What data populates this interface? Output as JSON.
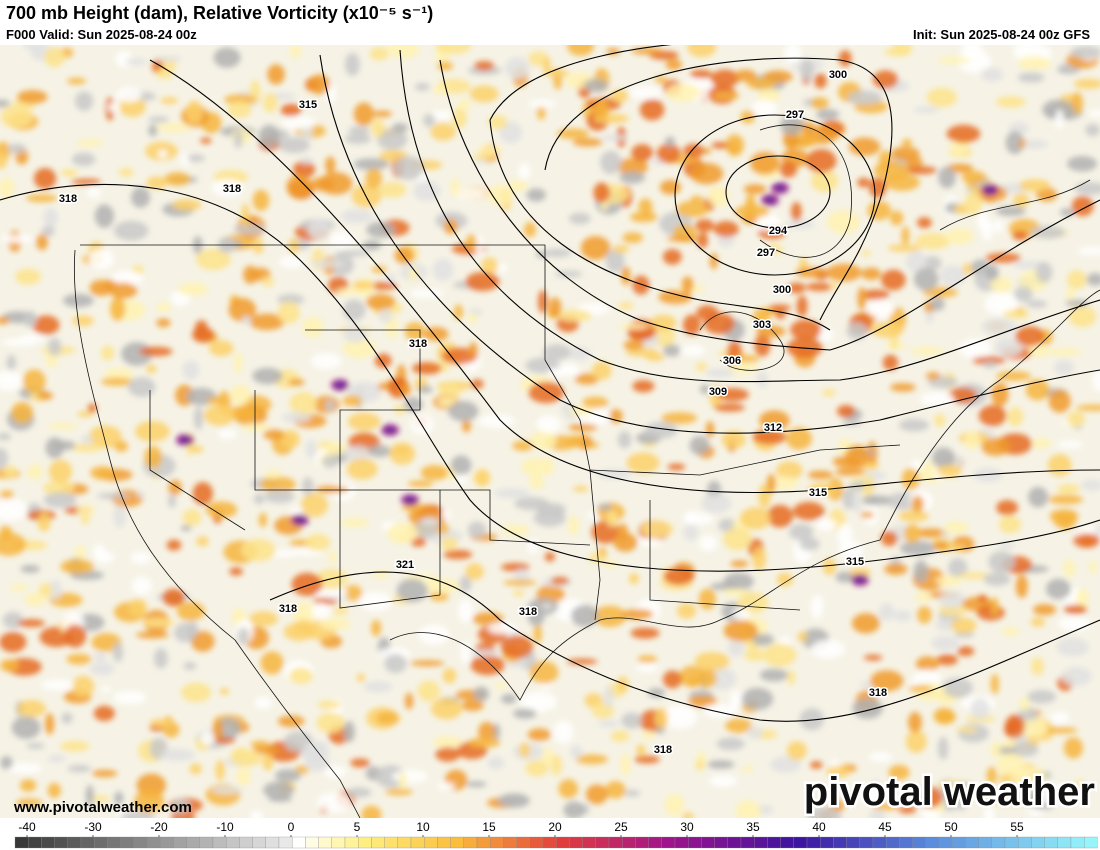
{
  "header": {
    "title": "700 mb Height (dam), Relative Vorticity (x10⁻⁵ s⁻¹)",
    "valid": "F000 Valid: Sun 2025-08-24 00z",
    "init": "Init: Sun 2025-08-24 00z GFS"
  },
  "map": {
    "contour_labels": [
      315,
      318,
      318,
      318,
      300,
      297,
      294,
      297,
      300,
      303,
      306,
      309,
      312,
      315,
      315,
      321,
      318,
      318,
      318,
      318
    ],
    "website": "www.pivotalweather.com",
    "watermark": "pivotal weather"
  },
  "colorbar": {
    "ticks": [
      -40,
      -30,
      -20,
      -10,
      0,
      5,
      10,
      15,
      20,
      25,
      30,
      35,
      40,
      45,
      50,
      55
    ]
  }
}
